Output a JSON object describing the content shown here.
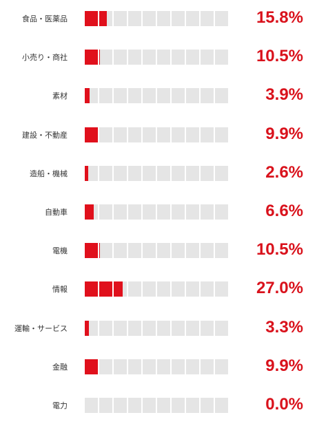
{
  "chart_data": {
    "type": "bar",
    "orientation": "horizontal",
    "unit": "%",
    "cells_per_bar": 10,
    "cell_value": 10,
    "categories": [
      "食品・医薬品",
      "小売り・商社",
      "素材",
      "建設・不動産",
      "造船・機械",
      "自動車",
      "電機",
      "情報",
      "運輸・サービス",
      "金融",
      "電力"
    ],
    "values": [
      15.8,
      10.5,
      3.9,
      9.9,
      2.6,
      6.6,
      10.5,
      27.0,
      3.3,
      9.9,
      0.0
    ],
    "value_labels": [
      "15.8%",
      "10.5%",
      "3.9%",
      "9.9%",
      "2.6%",
      "6.6%",
      "10.5%",
      "27.0%",
      "3.3%",
      "9.9%",
      "0.0%"
    ],
    "xlim": [
      0,
      100
    ],
    "colors": {
      "fill": "#e0101c",
      "track": "#e5e5e5",
      "value_text": "#d9121c"
    }
  }
}
